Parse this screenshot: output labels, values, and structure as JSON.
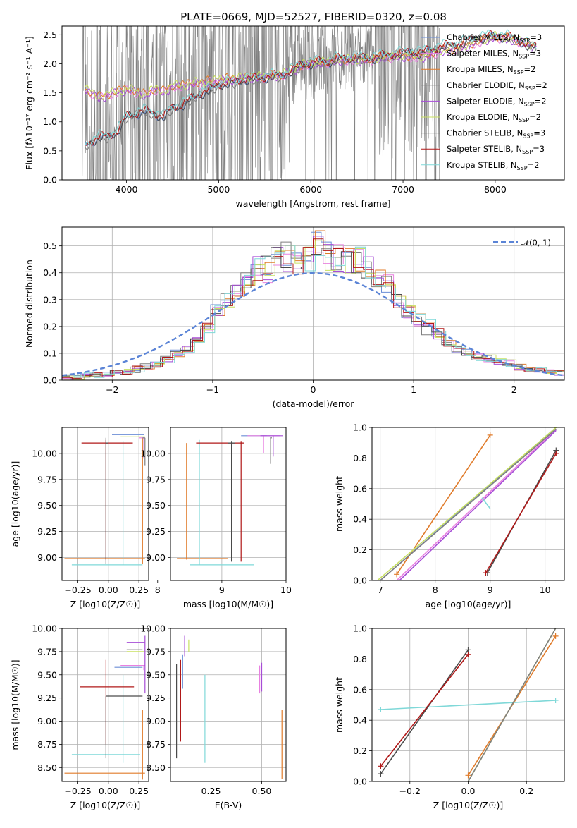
{
  "title": "PLATE=0669, MJD=52527, FIBERID=0320, z=0.08",
  "colors": {
    "Chabrier MILES": "#6b8ed6",
    "Salpeter MILES": "#e880e0",
    "Kroupa MILES": "#e07b2a",
    "Chabrier ELODIE": "#7f7f7f",
    "Salpeter ELODIE": "#a64dd6",
    "Kroupa ELODIE": "#c8e060",
    "Chabrier STELIB": "#4a4a4a",
    "Salpeter STELIB": "#b01818",
    "Kroupa STELIB": "#7fd8d8",
    "data": "#808080",
    "gauss": "#5b84d6"
  },
  "chart_data": [
    {
      "type": "line",
      "name": "spectrum",
      "xlabel": "wavelength [Angstrom, rest frame]",
      "ylabel": "Flux [fλ10⁻¹⁷ erg cm⁻² s⁻¹ A⁻¹]",
      "xlim": [
        3300,
        8750
      ],
      "ylim": [
        0,
        2.65
      ],
      "xticks": [
        "4000",
        "5000",
        "6000",
        "7000",
        "8000"
      ],
      "yticks": [
        "0.0",
        "0.5",
        "1.0",
        "1.5",
        "2.0",
        "2.5"
      ],
      "legend": [
        "Chabrier MILES, N_SSP=3",
        "Salpeter MILES, N_SSP=3",
        "Kroupa MILES, N_SSP=2",
        "Chabrier ELODIE, N_SSP=2",
        "Salpeter ELODIE, N_SSP=2",
        "Kroupa ELODIE, N_SSP=2",
        "Chabrier STELIB, N_SSP=3",
        "Salpeter STELIB, N_SSP=3",
        "Kroupa STELIB, N_SSP=2"
      ],
      "legend_location": "upper right",
      "model_flux_approx": {
        "x": [
          3550,
          3700,
          3800,
          3900,
          4000,
          4100,
          4200,
          4300,
          4400,
          4500,
          4600,
          4700,
          4800,
          4900,
          5000,
          5100,
          5200,
          5300,
          5400,
          5500,
          5600,
          5700,
          5800,
          5900,
          6000,
          6100,
          6200,
          6300,
          6400,
          6500,
          6600,
          6700,
          6800,
          6900,
          7000,
          7100,
          7200,
          7300,
          7400,
          7600,
          7800,
          8000,
          8200,
          8400
        ],
        "old_models": [
          0.6,
          0.75,
          0.75,
          0.85,
          1.1,
          1.15,
          1.2,
          1.15,
          1.1,
          1.25,
          1.3,
          1.4,
          1.5,
          1.55,
          1.65,
          1.68,
          1.7,
          1.75,
          1.75,
          1.78,
          1.8,
          1.82,
          1.9,
          2.0,
          2.02,
          2.05,
          2.05,
          2.1,
          2.1,
          2.12,
          2.1,
          2.12,
          2.15,
          2.18,
          2.2,
          2.22,
          2.2,
          2.25,
          2.3,
          2.35,
          2.45,
          2.5,
          2.45,
          2.3
        ],
        "young_models": [
          1.55,
          1.4,
          1.45,
          1.5,
          1.55,
          1.5,
          1.45,
          1.55,
          1.5,
          1.6,
          1.6,
          1.65,
          1.65,
          1.68,
          1.7,
          1.72,
          1.73,
          1.75,
          1.75,
          1.76,
          1.78,
          1.8,
          1.88,
          1.95,
          2.0,
          2.0,
          2.02,
          2.05,
          2.05,
          2.05,
          2.05,
          2.07,
          2.1,
          2.1,
          2.12,
          2.1,
          2.1,
          2.15,
          2.2,
          2.25,
          2.35,
          2.45,
          2.4,
          2.3
        ]
      }
    },
    {
      "type": "line",
      "name": "residual histogram",
      "xlabel": "(data-model)/error",
      "ylabel": "Normed distribution",
      "xlim": [
        -2.5,
        2.5
      ],
      "ylim": [
        0,
        0.57
      ],
      "xticks": [
        "−2",
        "−1",
        "0",
        "1",
        "2"
      ],
      "yticks": [
        "0.0",
        "0.1",
        "0.2",
        "0.3",
        "0.4",
        "0.5"
      ],
      "legend": [
        "𝒩(0, 1)"
      ],
      "gauss": {
        "mu": 0,
        "sigma": 1
      },
      "bin_edges": [
        -2.5,
        -2.4,
        -2.3,
        -2.2,
        -2.1,
        -2.0,
        -1.9,
        -1.8,
        -1.7,
        -1.6,
        -1.5,
        -1.4,
        -1.3,
        -1.2,
        -1.1,
        -1.0,
        -0.9,
        -0.8,
        -0.7,
        -0.6,
        -0.5,
        -0.4,
        -0.3,
        -0.2,
        -0.1,
        0.0,
        0.1,
        0.2,
        0.3,
        0.4,
        0.5,
        0.6,
        0.7,
        0.8,
        0.9,
        1.0,
        1.1,
        1.2,
        1.3,
        1.4,
        1.5,
        1.6,
        1.7,
        1.8,
        1.9,
        2.0,
        2.1,
        2.2,
        2.3,
        2.4,
        2.5
      ],
      "hist_ref": [
        0.01,
        0.01,
        0.02,
        0.02,
        0.02,
        0.03,
        0.03,
        0.04,
        0.05,
        0.06,
        0.08,
        0.1,
        0.11,
        0.15,
        0.2,
        0.25,
        0.3,
        0.33,
        0.37,
        0.42,
        0.41,
        0.45,
        0.46,
        0.44,
        0.45,
        0.5,
        0.46,
        0.45,
        0.44,
        0.45,
        0.43,
        0.38,
        0.35,
        0.3,
        0.26,
        0.22,
        0.2,
        0.17,
        0.14,
        0.12,
        0.1,
        0.09,
        0.08,
        0.07,
        0.06,
        0.05,
        0.04,
        0.04,
        0.03,
        0.03
      ]
    },
    {
      "type": "line",
      "name": "age vs Z",
      "xlabel": "Z [log10(Z/Z☉)]",
      "ylabel": "age [log10(age/yr)]",
      "xlim": [
        -0.38,
        0.33
      ],
      "ylim": [
        8.78,
        10.25
      ],
      "xticks": [
        "−0.25",
        "0.00",
        "0.25"
      ],
      "yticks": [
        "9.00",
        "9.25",
        "9.50",
        "9.75",
        "10.00"
      ]
    },
    {
      "type": "line",
      "name": "age vs mass",
      "xlabel": "mass [log10(M/M☉)]",
      "xlim": [
        8.2,
        10.0
      ],
      "ylim": [
        8.78,
        10.25
      ],
      "xticks": [
        "8",
        "9",
        "10"
      ],
      "yticks": [
        "9.00",
        "9.25",
        "9.50",
        "9.75",
        "10.00"
      ]
    },
    {
      "type": "line",
      "name": "mass weight vs age",
      "xlabel": "age [log10(age/yr)]",
      "ylabel": "mass weight",
      "xlim": [
        6.85,
        10.35
      ],
      "ylim": [
        0,
        1.0
      ],
      "xticks": [
        "7",
        "8",
        "9",
        "10"
      ],
      "yticks": [
        "0.0",
        "0.2",
        "0.4",
        "0.6",
        "0.8",
        "1.0"
      ]
    },
    {
      "type": "line",
      "name": "mass vs Z",
      "xlabel": "Z [log10(Z/Z☉)]",
      "ylabel": "mass [log10(M/M☉)]",
      "xlim": [
        -0.38,
        0.33
      ],
      "ylim": [
        8.35,
        10.0
      ],
      "xticks": [
        "−0.25",
        "0.00",
        "0.25"
      ],
      "yticks": [
        "8.50",
        "8.75",
        "9.00",
        "9.25",
        "9.50",
        "9.75",
        "10.00"
      ]
    },
    {
      "type": "line",
      "name": "mass vs E(B-V)",
      "xlabel": "E(B-V)",
      "xlim": [
        0.05,
        0.62
      ],
      "ylim": [
        8.35,
        10.0
      ],
      "xticks": [
        "0.25",
        "0.50"
      ],
      "yticks": [
        "8.50",
        "8.75",
        "9.00",
        "9.25",
        "9.50",
        "9.75",
        "10.00"
      ]
    },
    {
      "type": "line",
      "name": "mass weight vs Z",
      "xlabel": "Z [log10(Z/Z☉)]",
      "ylabel": "mass weight",
      "xlim": [
        -0.33,
        0.33
      ],
      "ylim": [
        0,
        1.0
      ],
      "xticks": [
        "−0.2",
        "0.0",
        "0.2"
      ],
      "yticks": [
        "0.0",
        "0.2",
        "0.4",
        "0.6",
        "0.8",
        "1.0"
      ]
    }
  ]
}
